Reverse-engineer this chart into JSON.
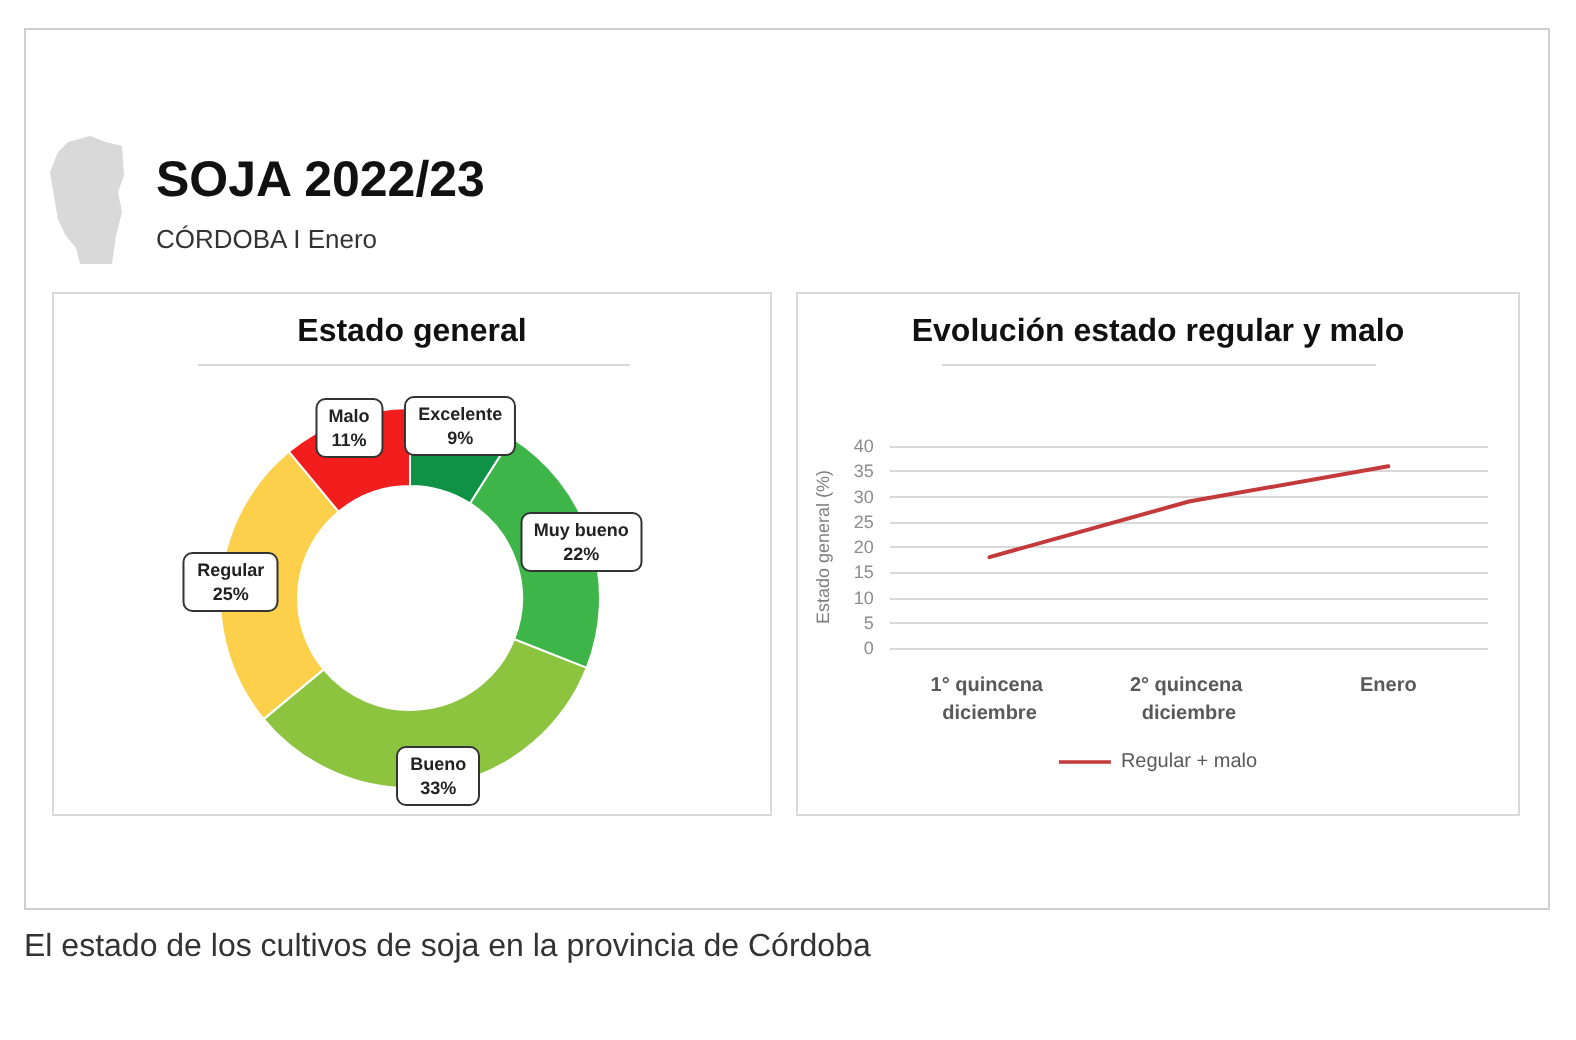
{
  "chart_data": [
    {
      "type": "other",
      "title": "SOJA 2022/23",
      "subtitle": "CÓRDOBA I Enero",
      "annotations": [
        "El estado de los cultivos de soja en la provincia de Córdoba"
      ]
    },
    {
      "type": "donut",
      "title": "Estado general",
      "categories": [
        "Excelente",
        "Muy bueno",
        "Bueno",
        "Regular",
        "Malo"
      ],
      "values": [
        9,
        22,
        33,
        25,
        11
      ],
      "value_labels": [
        "9%",
        "22%",
        "33%",
        "25%",
        "11%"
      ],
      "colors": [
        "#0f9146",
        "#3db549",
        "#8cc440",
        "#fdd04c",
        "#f21d1d"
      ]
    },
    {
      "type": "line",
      "title": "Evolución estado regular y malo",
      "categories": [
        "1° quincena diciembre",
        "2° quincena diciembre",
        "Enero"
      ],
      "series": [
        {
          "name": "Regular + malo",
          "color": "#c4393b",
          "values": [
            18,
            29,
            36
          ]
        }
      ],
      "ylabel": "Estado general (%)",
      "ylim": [
        0,
        40
      ],
      "yticks": [
        0,
        5,
        10,
        15,
        20,
        25,
        30,
        35,
        40
      ],
      "grid": "y",
      "legend": "bottom",
      "marker": "none"
    }
  ]
}
